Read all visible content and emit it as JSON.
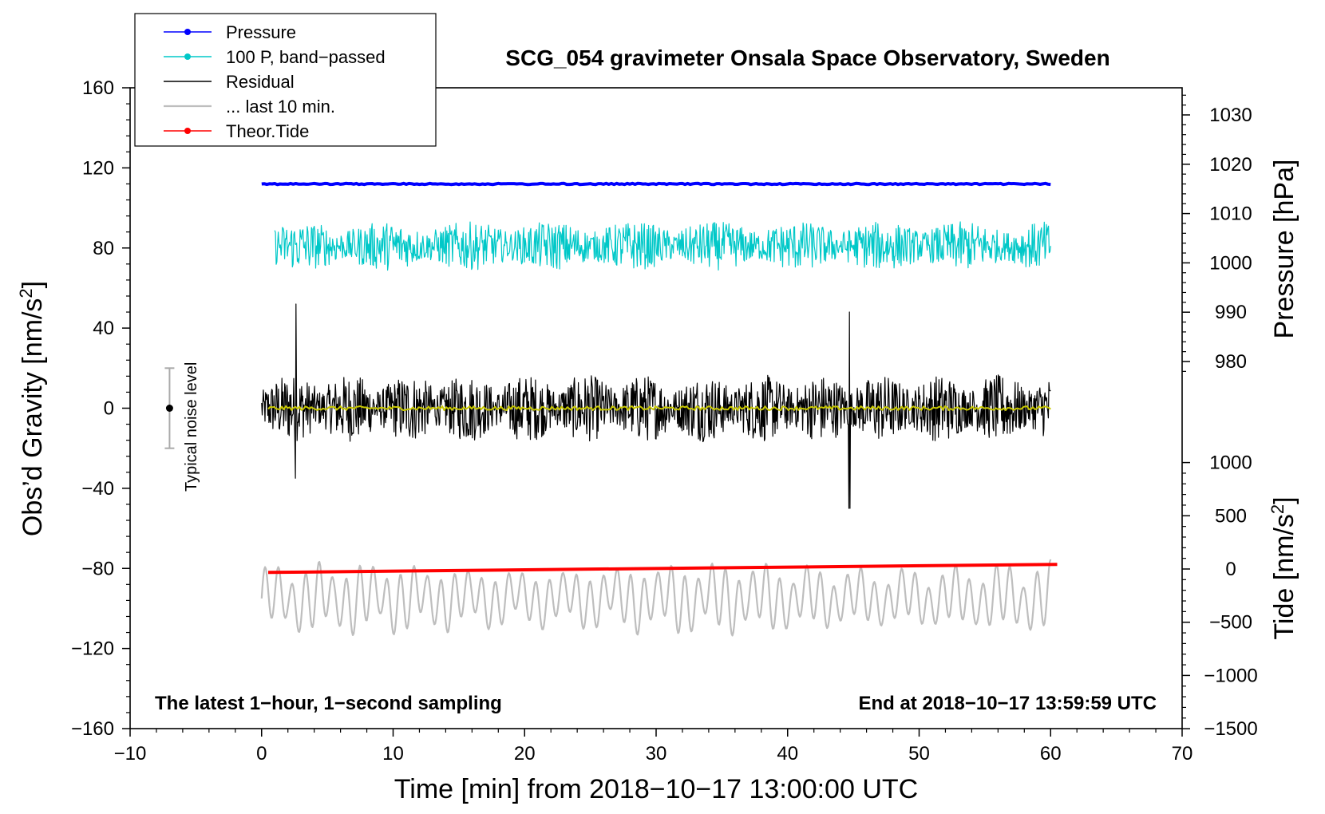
{
  "chart_data": {
    "type": "line",
    "title": "SCG_054 gravimeter Onsala Space Observatory, Sweden",
    "xlabel": "Time [min] from 2018−10−17 13:00:00 UTC",
    "ylabel_left": "Obs’d Gravity [nm/s",
    "ylabel_left_sup": "2",
    "ylabel_left_end": "]",
    "ylabel_right_pressure": "Pressure [hPa]",
    "ylabel_right_tide": "Tide [nm/s",
    "ylabel_right_tide_sup": "2",
    "ylabel_right_tide_end": "]",
    "xlim": [
      -10,
      70
    ],
    "ylim_left": [
      -160,
      160
    ],
    "x_ticks": [
      -10,
      0,
      10,
      20,
      30,
      40,
      50,
      60,
      70
    ],
    "x_tick_labels": [
      "−10",
      "0",
      "10",
      "20",
      "30",
      "40",
      "50",
      "60",
      "70"
    ],
    "y_left_ticks": [
      160,
      120,
      80,
      40,
      0,
      -40,
      -80,
      -120,
      -160
    ],
    "y_left_tick_labels": [
      "160",
      "120",
      "80",
      "40",
      "0",
      "−40",
      "−80",
      "−120",
      "−160"
    ],
    "pressure_ticks": [
      1030,
      1020,
      1010,
      1000,
      990,
      980
    ],
    "pressure_tick_labels": [
      "1030",
      "1020",
      "1010",
      "1000",
      "990",
      "980"
    ],
    "tide_ticks": [
      1000,
      500,
      0,
      -500,
      -1000,
      -1500
    ],
    "tide_tick_labels": [
      "1000",
      "500",
      "0",
      "−500",
      "−1000",
      "−1500"
    ],
    "note_left": "The latest 1−hour, 1−second sampling",
    "note_right": "End at 2018−10−17 13:59:59 UTC",
    "noise_label": "Typical noise level",
    "noise_bar": {
      "x": -7,
      "center": 0,
      "half_range": 20
    },
    "legend": [
      {
        "label": "Pressure",
        "color": "#0000ff",
        "marker": true
      },
      {
        "label": "100 P, band−passed",
        "color": "#00c8c8",
        "marker": true
      },
      {
        "label": "Residual",
        "color": "#000000",
        "marker": false
      },
      {
        "label": "... last 10 min.",
        "color": "#bebebe",
        "marker": false
      },
      {
        "label": "Theor.Tide",
        "color": "#ff0000",
        "marker": true
      }
    ],
    "series": [
      {
        "name": "Pressure",
        "color": "#0000ff",
        "x_range": [
          0,
          60
        ],
        "value_hpa": 1016,
        "offset_nm_s2": 113
      },
      {
        "name": "100 P, band−passed",
        "color": "#00c8c8",
        "x_range": [
          1,
          60
        ],
        "center": 81,
        "amplitude": 11
      },
      {
        "name": "Residual",
        "color": "#000000",
        "x_range": [
          0,
          60
        ],
        "center": 0,
        "amplitude": 14
      },
      {
        "name": "Residual smoothed",
        "color": "#c8c800",
        "x_range": [
          0.5,
          60
        ],
        "center": 0,
        "amplitude": 1
      },
      {
        "name": "... last 10 min.",
        "color": "#bebebe",
        "x_range": [
          0,
          60
        ],
        "center": -95,
        "amplitude": 16
      },
      {
        "name": "Theor.Tide",
        "color": "#ff0000",
        "x_range": [
          0.5,
          60.5
        ],
        "start_nm_s2": -82,
        "end_nm_s2": -78
      }
    ]
  }
}
